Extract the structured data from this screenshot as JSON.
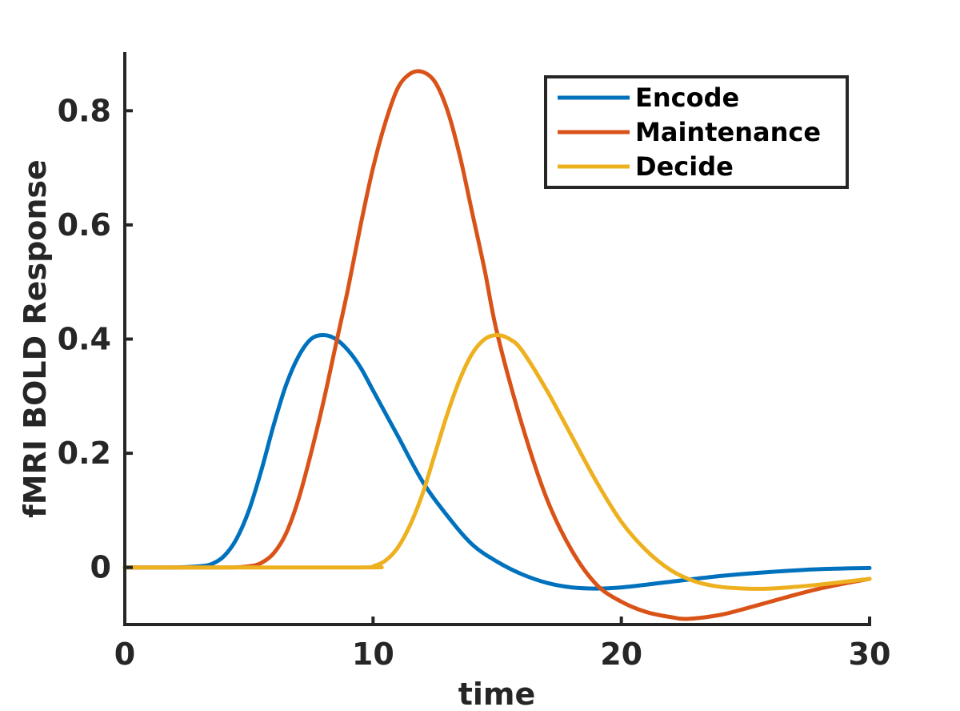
{
  "chart_data": {
    "type": "line",
    "title": "",
    "xlabel": "time",
    "ylabel": "fMRI BOLD Response",
    "xlim": [
      0,
      30
    ],
    "ylim": [
      -0.1,
      0.9
    ],
    "xticks": [
      0,
      10,
      20,
      30
    ],
    "xtick_labels": [
      "0",
      "10",
      "20",
      "30"
    ],
    "yticks": [
      0,
      0.2,
      0.4,
      0.6,
      0.8
    ],
    "ytick_labels": [
      "0",
      "0.2",
      "0.4",
      "0.6",
      "0.8"
    ],
    "grid": false,
    "legend_position": "top-right",
    "series": [
      {
        "name": "Encode",
        "color": "#0072BD",
        "x": [
          0,
          2,
          3,
          3.5,
          4,
          4.5,
          5,
          5.5,
          6,
          6.5,
          7,
          7.5,
          8,
          8.5,
          9,
          9.5,
          10,
          11,
          12,
          13,
          14,
          15,
          16,
          17,
          18,
          19,
          20,
          22,
          24,
          26,
          28,
          30
        ],
        "y": [
          0,
          0,
          0.002,
          0.006,
          0.02,
          0.05,
          0.1,
          0.17,
          0.25,
          0.32,
          0.37,
          0.4,
          0.407,
          0.4,
          0.38,
          0.35,
          0.31,
          0.23,
          0.15,
          0.09,
          0.04,
          0.01,
          -0.012,
          -0.027,
          -0.035,
          -0.037,
          -0.035,
          -0.025,
          -0.015,
          -0.008,
          -0.003,
          -0.001
        ]
      },
      {
        "name": "Maintenance",
        "color": "#D95319",
        "x": [
          0,
          4,
          5,
          5.5,
          6,
          6.5,
          7,
          7.5,
          8,
          8.5,
          9,
          9.5,
          10,
          10.5,
          11,
          11.5,
          12,
          12.5,
          13,
          13.5,
          14,
          14.5,
          15,
          16,
          17,
          18,
          19,
          20,
          21,
          22,
          22.7,
          24,
          25,
          26,
          27,
          28,
          29,
          30
        ],
        "y": [
          0,
          0,
          0.002,
          0.008,
          0.025,
          0.06,
          0.12,
          0.2,
          0.29,
          0.39,
          0.49,
          0.6,
          0.7,
          0.78,
          0.84,
          0.865,
          0.868,
          0.85,
          0.8,
          0.72,
          0.62,
          0.52,
          0.41,
          0.25,
          0.12,
          0.03,
          -0.03,
          -0.06,
          -0.078,
          -0.087,
          -0.09,
          -0.083,
          -0.072,
          -0.06,
          -0.048,
          -0.037,
          -0.028,
          -0.02
        ]
      },
      {
        "name": "Decide",
        "color": "#EDB120",
        "x": [
          0,
          9.5,
          10,
          10.5,
          11,
          11.5,
          12,
          12.5,
          13,
          13.5,
          14,
          14.5,
          15,
          15.5,
          16,
          17,
          18,
          19,
          20,
          21,
          22,
          23,
          24,
          25,
          26,
          27,
          28,
          30
        ],
        "y": [
          0,
          0,
          0.002,
          0.012,
          0.035,
          0.075,
          0.13,
          0.2,
          0.27,
          0.33,
          0.375,
          0.4,
          0.407,
          0.4,
          0.38,
          0.31,
          0.23,
          0.15,
          0.08,
          0.03,
          -0.005,
          -0.025,
          -0.034,
          -0.037,
          -0.037,
          -0.034,
          -0.03,
          -0.02
        ]
      }
    ]
  }
}
